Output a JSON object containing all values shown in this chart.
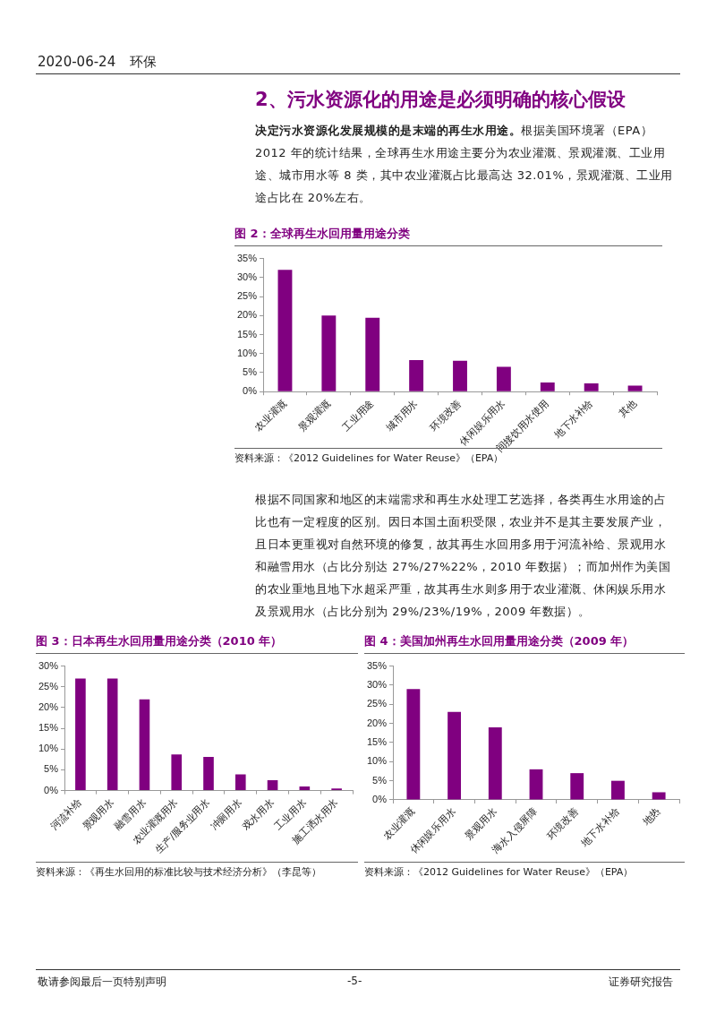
{
  "chart_data": [
    {
      "type": "bar",
      "title": "图 2：全球再生水回用量用途分类",
      "categories": [
        "农业灌溉",
        "景观灌溉",
        "工业用途",
        "城市用水",
        "环境改善",
        "休闲娱乐用水",
        "间接饮用水使用",
        "地下水补给",
        "其他"
      ],
      "values": [
        32,
        20,
        19.4,
        8.3,
        8.1,
        6.5,
        2.4,
        2.2,
        1.6
      ],
      "color": "#800080",
      "ylim": [
        0,
        35
      ],
      "yticks": [
        {
          "value": 0,
          "label": "0%"
        },
        {
          "value": 5,
          "label": "5%"
        },
        {
          "value": 10,
          "label": "10%"
        },
        {
          "value": 15,
          "label": "15%"
        },
        {
          "value": 20,
          "label": "20%"
        },
        {
          "value": 25,
          "label": "25%"
        },
        {
          "value": 30,
          "label": "30%"
        },
        {
          "value": 35,
          "label": "35%"
        }
      ],
      "grid": false,
      "legend": false,
      "annotations": [
        "2020-06-24",
        "环保",
        "2、污水资源化的用途是必须明确的核心假设",
        "决定污水资源化发展规模的是末端的再生水用途。",
        "根据美国环境署（EPA）2012 年的统计结果，全球再生水用途主要分为农业灌溉、景观灌溉、工业用途、城市用水等 8 类，其中农业灌溉占比最高达 32.01%，景观灌溉、工业用途占比在 20%左右。",
        "根据不同国家和地区的末端需求和再生水处理工艺选择，各类再生水用途的占比也有一定程度的区别。因日本国土面积受限，农业并不是其主要发展产业，且日本更重视对自然环境的修复，故其再生水回用多用于河流补给、景观用水和融雪用水（占比分别达 27%/27%22%，2010 年数据）；而加州作为美国的农业重地且地下水超采严重，故其再生水则多用于农业灌溉、休闲娱乐用水及景观用水（占比分别为 29%/23%/19%，2009 年数据）。",
        "敬请参阅最后一页特别声明",
        "-5-",
        "证券研究报告",
        "资料来源：《2012 Guidelines for Water Reuse》（EPA）"
      ]
    },
    {
      "type": "bar",
      "title": "图 3：日本再生水回用量用途分类（2010 年）",
      "categories": [
        "河流补给",
        "景观用水",
        "融雪用水",
        "农业灌溉用水",
        "生产/服务业用水",
        "冲厕用水",
        "戏水用水",
        "工业用水",
        "施工洒水用水"
      ],
      "values": [
        27,
        27,
        22,
        8.7,
        8.1,
        3.9,
        2.5,
        1,
        0.5
      ],
      "color": "#800080",
      "ylim": [
        0,
        30
      ],
      "yticks": [
        {
          "value": 0,
          "label": "0%"
        },
        {
          "value": 5,
          "label": "5%"
        },
        {
          "value": 10,
          "label": "10%"
        },
        {
          "value": 15,
          "label": "15%"
        },
        {
          "value": 20,
          "label": "20%"
        },
        {
          "value": 25,
          "label": "25%"
        },
        {
          "value": 30,
          "label": "30%"
        }
      ],
      "grid": false,
      "legend": false,
      "annotations": [
        "资料来源：《再生水回用的标准比较与技术经济分析》（李昆等）"
      ]
    },
    {
      "type": "bar",
      "title": "图 4：美国加州再生水回用量用途分类（2009 年）",
      "categories": [
        "农业灌溉",
        "休闲娱乐用水",
        "景观用水",
        "海水入侵屏障",
        "环境改善",
        "地下水补给",
        "地热"
      ],
      "values": [
        29,
        23,
        19,
        8,
        7,
        5,
        2
      ],
      "color": "#800080",
      "ylim": [
        0,
        35
      ],
      "yticks": [
        {
          "value": 0,
          "label": "0%"
        },
        {
          "value": 5,
          "label": "5%"
        },
        {
          "value": 10,
          "label": "10%"
        },
        {
          "value": 15,
          "label": "15%"
        },
        {
          "value": 20,
          "label": "20%"
        },
        {
          "value": 25,
          "label": "25%"
        },
        {
          "value": 30,
          "label": "30%"
        },
        {
          "value": 35,
          "label": "35%"
        }
      ],
      "grid": false,
      "legend": false,
      "annotations": [
        "资料来源：《2012 Guidelines for Water Reuse》（EPA）"
      ]
    }
  ]
}
